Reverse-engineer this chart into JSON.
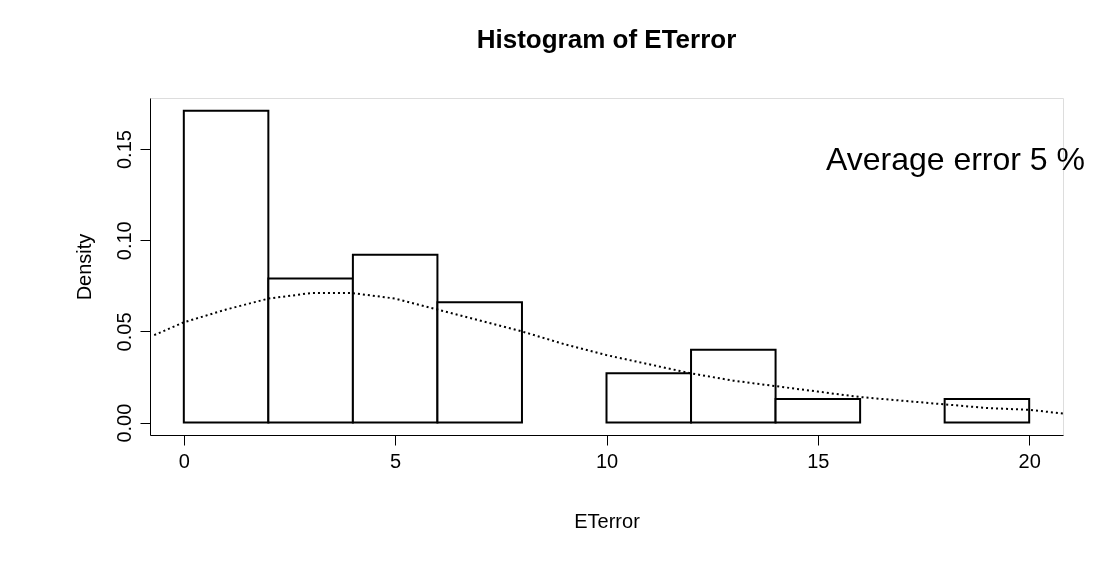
{
  "chart_data": {
    "type": "histogram",
    "title": "Histogram of ETerror",
    "xlabel": "ETerror",
    "ylabel": "Density",
    "bins": [
      0,
      2,
      4,
      6,
      8,
      10,
      12,
      14,
      16,
      18,
      20
    ],
    "values": [
      0.171,
      0.079,
      0.092,
      0.066,
      0,
      0.027,
      0.04,
      0.013,
      0,
      0.013
    ],
    "color": "#ffffff",
    "series": [
      {
        "type": "line",
        "color": "#000000",
        "line_style": "dotted",
        "x": [
          -0.7,
          0,
          1,
          2,
          3,
          4,
          5,
          6,
          7,
          8,
          9,
          10,
          11,
          12,
          13,
          14,
          15,
          16,
          17,
          18,
          19,
          20,
          20.8
        ],
        "values": [
          0.048,
          0.055,
          0.062,
          0.068,
          0.071,
          0.071,
          0.068,
          0.062,
          0.056,
          0.05,
          0.043,
          0.037,
          0.032,
          0.027,
          0.023,
          0.02,
          0.017,
          0.014,
          0.012,
          0.01,
          0.008,
          0.007,
          0.005
        ]
      }
    ],
    "xlim": [
      -0.8,
      20.8
    ],
    "ylim": [
      -0.0068,
      0.178
    ],
    "xticks": [
      0,
      5,
      10,
      15,
      20
    ],
    "yticks": [
      {
        "value": 0,
        "label": "0.00"
      },
      {
        "value": 0.05,
        "label": "0.05"
      },
      {
        "value": 0.1,
        "label": "0.10"
      },
      {
        "value": 0.15,
        "label": "0.15"
      }
    ],
    "annotations": [
      "Average error 5 %"
    ]
  }
}
